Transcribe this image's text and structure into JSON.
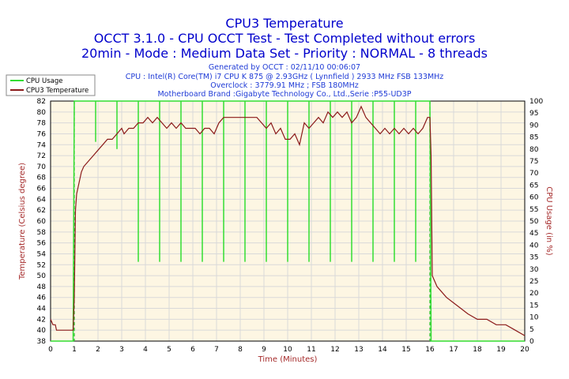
{
  "chart_data": {
    "type": "line",
    "title": "CPU3 Temperature",
    "subtitle_1": "OCCT 3.1.0 - CPU OCCT Test - Test Completed without errors",
    "subtitle_2": "20min - Mode : Medium Data Set - Priority : NORMAL - 8 threads",
    "info_lines": [
      "Generated by OCCT : 02/11/10 00:06:07",
      "CPU : Intel(R) Core(TM) i7 CPU K 875 @ 2.93GHz ( Lynnfield ) 2933 MHz FSB 133MHz",
      "Overclock : 3779.91 MHz ; FSB 180MHz",
      "Motherboard Brand :Gigabyte Technology Co., Ltd.,Serie :P55-UD3P"
    ],
    "xlabel": "Time (Minutes)",
    "ylabel_left": "Temperature (Celsius degree)",
    "ylabel_right": "CPU Usage (in %)",
    "xlim": [
      0,
      20
    ],
    "ylim_left": [
      38,
      82
    ],
    "ylim_right": [
      0,
      100
    ],
    "x_ticks": [
      0,
      1,
      2,
      3,
      4,
      5,
      6,
      7,
      8,
      9,
      10,
      11,
      12,
      13,
      14,
      15,
      16,
      17,
      18,
      19,
      20
    ],
    "y_left_ticks": [
      38,
      40,
      42,
      44,
      46,
      48,
      50,
      52,
      54,
      56,
      58,
      60,
      62,
      64,
      66,
      68,
      70,
      72,
      74,
      76,
      78,
      80,
      82
    ],
    "y_right_ticks": [
      0,
      5,
      10,
      15,
      20,
      25,
      30,
      35,
      40,
      45,
      50,
      55,
      60,
      65,
      70,
      75,
      80,
      85,
      90,
      95,
      100
    ],
    "grid": true,
    "legend_position": "top-left",
    "colors": {
      "background": "#fdf6e3",
      "grid": "#d9d9d9",
      "usage": "#33dd33",
      "temperature": "#8b1a1a",
      "title": "#0000cc",
      "axis_label": "#a52a2a",
      "marker": "#20c020"
    },
    "markers_x": [
      1,
      16
    ],
    "series": [
      {
        "name": "CPU Usage",
        "axis": "right",
        "baseline": 100,
        "dips": [
          {
            "x": 1.9,
            "y": 83
          },
          {
            "x": 2.8,
            "y": 80
          },
          {
            "x": 3.7,
            "y": 33
          },
          {
            "x": 4.6,
            "y": 33
          },
          {
            "x": 5.5,
            "y": 33
          },
          {
            "x": 6.4,
            "y": 33
          },
          {
            "x": 7.3,
            "y": 33
          },
          {
            "x": 8.2,
            "y": 33
          },
          {
            "x": 9.1,
            "y": 33
          },
          {
            "x": 10.0,
            "y": 33
          },
          {
            "x": 10.9,
            "y": 33
          },
          {
            "x": 11.8,
            "y": 33
          },
          {
            "x": 12.7,
            "y": 33
          },
          {
            "x": 13.6,
            "y": 33
          },
          {
            "x": 14.5,
            "y": 33
          },
          {
            "x": 15.4,
            "y": 33
          }
        ],
        "x": [
          0,
          0.95,
          1.0,
          16.0,
          16.05,
          20
        ],
        "values": [
          0,
          0,
          100,
          100,
          0,
          0
        ]
      },
      {
        "name": "CPU3 Temperature",
        "axis": "left",
        "x": [
          0,
          0.1,
          0.2,
          0.25,
          0.5,
          0.95,
          1.0,
          1.05,
          1.1,
          1.2,
          1.3,
          1.4,
          1.6,
          1.8,
          2.0,
          2.2,
          2.4,
          2.6,
          2.8,
          3.0,
          3.1,
          3.3,
          3.5,
          3.7,
          3.9,
          4.1,
          4.3,
          4.5,
          4.7,
          4.9,
          5.1,
          5.3,
          5.5,
          5.7,
          5.9,
          6.1,
          6.3,
          6.5,
          6.7,
          6.9,
          7.1,
          7.3,
          7.5,
          7.7,
          7.9,
          8.1,
          8.3,
          8.5,
          8.7,
          8.9,
          9.1,
          9.3,
          9.5,
          9.7,
          9.9,
          10.1,
          10.3,
          10.5,
          10.7,
          10.9,
          11.1,
          11.3,
          11.5,
          11.7,
          11.9,
          12.1,
          12.3,
          12.5,
          12.7,
          12.9,
          13.1,
          13.3,
          13.5,
          13.7,
          13.9,
          14.1,
          14.3,
          14.5,
          14.7,
          14.9,
          15.1,
          15.3,
          15.5,
          15.7,
          15.9,
          16.0,
          16.05,
          16.1,
          16.2,
          16.3,
          16.5,
          16.7,
          17.0,
          17.3,
          17.6,
          18.0,
          18.4,
          18.8,
          19.2,
          19.6,
          20.0
        ],
        "values": [
          42,
          41,
          41,
          40,
          40,
          40,
          46,
          62,
          65,
          67,
          69,
          70,
          71,
          72,
          73,
          74,
          75,
          75,
          76,
          77,
          76,
          77,
          77,
          78,
          78,
          79,
          78,
          79,
          78,
          77,
          78,
          77,
          78,
          77,
          77,
          77,
          76,
          77,
          77,
          76,
          78,
          79,
          79,
          79,
          79,
          79,
          79,
          79,
          79,
          78,
          77,
          78,
          76,
          77,
          75,
          75,
          76,
          74,
          78,
          77,
          78,
          79,
          78,
          80,
          79,
          80,
          79,
          80,
          78,
          79,
          81,
          79,
          78,
          77,
          76,
          77,
          76,
          77,
          76,
          77,
          76,
          77,
          76,
          77,
          79,
          79,
          72,
          50,
          49,
          48,
          47,
          46,
          45,
          44,
          43,
          42,
          42,
          41,
          41,
          40,
          39
        ]
      }
    ]
  }
}
